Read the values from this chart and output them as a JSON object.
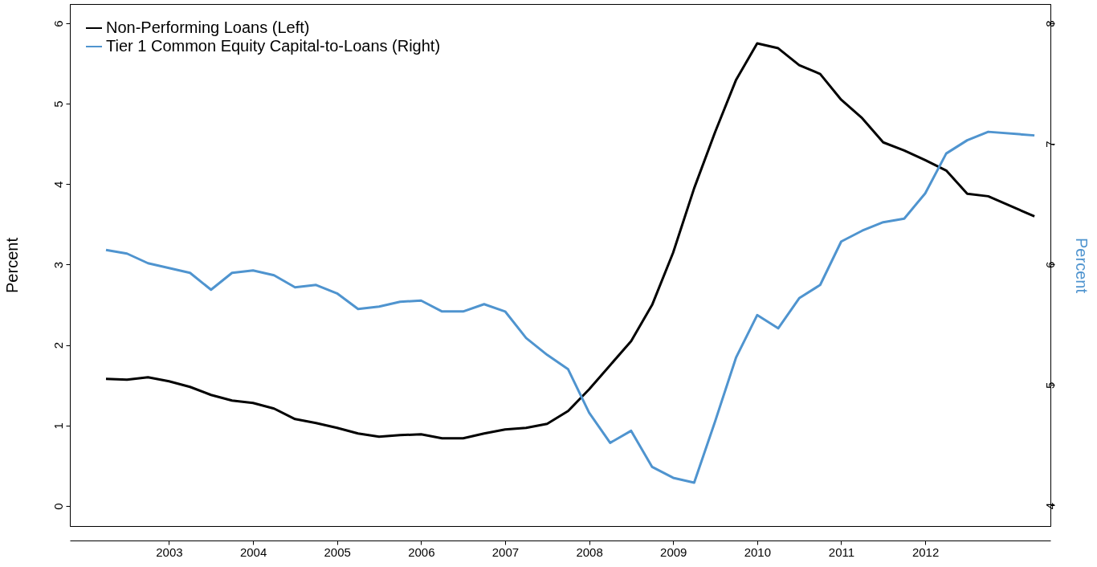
{
  "chart_data": {
    "type": "line",
    "x": [
      2002.25,
      2002.5,
      2002.75,
      2003,
      2003.25,
      2003.5,
      2003.75,
      2004,
      2004.25,
      2004.5,
      2004.75,
      2005,
      2005.25,
      2005.5,
      2005.75,
      2006,
      2006.25,
      2006.5,
      2006.75,
      2007,
      2007.25,
      2007.5,
      2007.75,
      2008,
      2008.25,
      2008.5,
      2008.75,
      2009,
      2009.25,
      2009.5,
      2009.75,
      2010,
      2010.25,
      2010.5,
      2010.75,
      2011,
      2011.25,
      2011.5,
      2011.75,
      2012,
      2012.25,
      2012.5,
      2012.75,
      2013.3
    ],
    "series": [
      {
        "name": "Non-Performing Loans (Left)",
        "color": "#000000",
        "values": [
          1.58,
          1.57,
          1.6,
          1.55,
          1.48,
          1.38,
          1.31,
          1.28,
          1.21,
          1.08,
          1.03,
          0.97,
          0.9,
          0.86,
          0.88,
          0.89,
          0.84,
          0.84,
          0.9,
          0.95,
          0.97,
          1.02,
          1.18,
          1.45,
          1.75,
          2.05,
          2.5,
          3.15,
          3.95,
          4.65,
          5.3,
          5.75,
          5.69,
          5.48,
          5.37,
          5.05,
          4.82,
          4.52,
          4.42,
          4.3,
          4.17,
          3.88,
          3.85,
          3.6
        ]
      },
      {
        "name": "Tier 1 Common Equity Capital-to-Loans (Right)",
        "color": "#4f94cf",
        "axis": "y2",
        "values": [
          6.12,
          6.09,
          6.01,
          5.97,
          5.93,
          5.79,
          5.93,
          5.95,
          5.91,
          5.81,
          5.83,
          5.76,
          5.63,
          5.65,
          5.69,
          5.7,
          5.61,
          5.61,
          5.67,
          5.61,
          5.39,
          5.25,
          5.13,
          4.77,
          4.52,
          4.62,
          4.32,
          4.23,
          4.19,
          4.7,
          5.23,
          5.58,
          5.47,
          5.72,
          5.83,
          6.19,
          6.28,
          6.35,
          6.38,
          6.59,
          6.92,
          7.03,
          7.1,
          7.07
        ]
      }
    ],
    "ylabel": "Percent",
    "y2label": "Percent",
    "xlim": [
      2001.82,
      2013.49
    ],
    "xticks": [
      2003,
      2004,
      2005,
      2006,
      2007,
      2008,
      2009,
      2010,
      2011,
      2012
    ],
    "ylim": [
      -0.25,
      6.24
    ],
    "yticks": [
      0,
      1,
      2,
      3,
      4,
      5,
      6
    ],
    "y2lim": [
      3.83,
      8.16
    ],
    "y2ticks": [
      4,
      5,
      6,
      7,
      8
    ],
    "grid": false,
    "legend": "top left"
  }
}
